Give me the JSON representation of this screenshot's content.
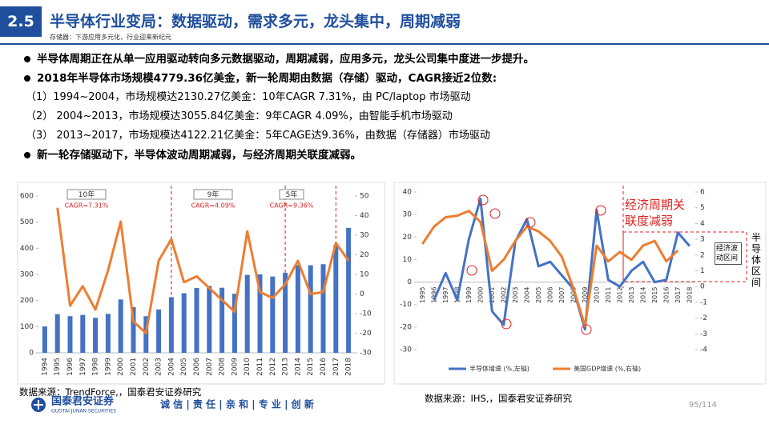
{
  "header": {
    "number": "2.5",
    "title": "半导体行业变局：数据驱动，需求多元，龙头集中，周期减弱",
    "subtitle": "存储器：下游应用多元化，行业迎来新纪元"
  },
  "bullets": [
    {
      "text": "半导体周期正在从单一应用驱动转向多元数据驱动，周期减弱，应用多元，龙头公司集中度进一步提升。",
      "bullet": true
    },
    {
      "text": "2018年半导体市场规模4779.36亿美金，新一轮周期由数据（存储）驱动，CAGR接近2位数:",
      "bullet": true
    },
    {
      "text": "（1）1994~2004，市场规模达2130.27亿美金：10年CAGR  7.31%，由 PC/laptop 市场驱动",
      "bullet": false
    },
    {
      "text": "（2）  2004~2013，市场规模达3055.84亿美金：9年CAGR  4.09%，由智能手机市场驱动",
      "bullet": false
    },
    {
      "text": "（3）  2013~2017，市场规模达4122.21亿美金：5年CAGE达9.36%，由数据（存储器）市场驱动",
      "bullet": false
    },
    {
      "text": "新一轮存储驱动下，半导体波动周期减弱，与经济周期关联度减弱。",
      "bullet": true
    }
  ],
  "chart_data": [
    {
      "type": "bar",
      "categories": [
        "1994",
        "1995",
        "1996",
        "1997",
        "1998",
        "1999",
        "2000",
        "2001",
        "2002",
        "2003",
        "2004",
        "2005",
        "2006",
        "2007",
        "2008",
        "2009",
        "2010",
        "2011",
        "2012",
        "2013",
        "2014",
        "2015",
        "2016",
        "2017",
        "2018"
      ],
      "series": [
        {
          "type": "bar",
          "color": "#4472c4",
          "values": [
            101,
            148,
            140,
            145,
            134,
            149,
            204,
            175,
            140,
            166,
            213,
            228,
            248,
            256,
            249,
            226,
            298,
            300,
            292,
            306,
            336,
            335,
            339,
            412,
            478
          ]
        },
        {
          "type": "line",
          "axis": "y2",
          "color": "#ed7d31",
          "values": [
            null,
            44,
            -6,
            4,
            -8,
            12,
            37,
            -14,
            -20,
            17,
            28,
            6,
            9,
            3,
            -3,
            -9,
            32,
            1,
            -2,
            5,
            17,
            0,
            1,
            26,
            17
          ]
        }
      ],
      "ylim": [
        0,
        600
      ],
      "yticks": [
        0,
        100,
        200,
        300,
        400,
        500,
        600
      ],
      "y2lim": [
        -30,
        50
      ],
      "y2ticks": [
        -30,
        -20,
        -10,
        0,
        10,
        20,
        30,
        40,
        50
      ],
      "annotations": [
        {
          "label": "10年",
          "text": "CAGR=7.31%"
        },
        {
          "label": "9年",
          "text": "CAGR=4.09%"
        },
        {
          "label": "5年",
          "text": "CAGR=9.36%"
        }
      ],
      "source": "数据来源：TrendForce,，国泰君安证券研究"
    },
    {
      "type": "line",
      "categories": [
        "1995",
        "1996",
        "1997",
        "1998",
        "1999",
        "2000",
        "2001",
        "2002",
        "2003",
        "2004",
        "2005",
        "2006",
        "2007",
        "2008",
        "2009",
        "2010",
        "2011",
        "2012",
        "2013",
        "2014",
        "2015",
        "2016",
        "2017",
        "2018"
      ],
      "series": [
        {
          "name": "半导体增速 (%,左轴)",
          "color": "#4472c4",
          "values": [
            null,
            -8,
            4,
            -8,
            19,
            37,
            -13,
            -19,
            18,
            28,
            7,
            9,
            3,
            -3,
            -21,
            32,
            1,
            -2,
            5,
            9,
            0,
            1,
            22,
            16
          ]
        },
        {
          "name": "美国GDP增速 (%,右轴)",
          "axis": "y2",
          "color": "#ed7d31",
          "values": [
            2.7,
            3.8,
            4.4,
            4.5,
            4.8,
            4.1,
            1.0,
            1.7,
            2.9,
            3.8,
            3.5,
            2.9,
            1.9,
            -0.1,
            -2.5,
            2.6,
            1.6,
            2.2,
            1.7,
            2.6,
            2.9,
            1.6,
            2.3,
            null
          ]
        }
      ],
      "ylim": [
        -30,
        40
      ],
      "yticks": [
        -30,
        -20,
        -10,
        0,
        10,
        20,
        30,
        40
      ],
      "y2lim": [
        -4,
        6
      ],
      "y2ticks": [
        -4,
        -3,
        -2,
        -1,
        0,
        1,
        2,
        3,
        4,
        5,
        6
      ],
      "annotations": [
        {
          "text": "经济周期关联度减弱"
        },
        {
          "text": "经济波动区间"
        },
        {
          "text": "半导体区间"
        }
      ],
      "source": "数据来源：IHS,，国泰君安证券研究"
    }
  ],
  "footer": {
    "company": "国泰君安证券",
    "company_en": "GUOTAI JUNAN SECURITIES",
    "motto": "诚 信 | 责 任 | 亲 和 | 专 业 | 创 新",
    "page": "95/114"
  }
}
